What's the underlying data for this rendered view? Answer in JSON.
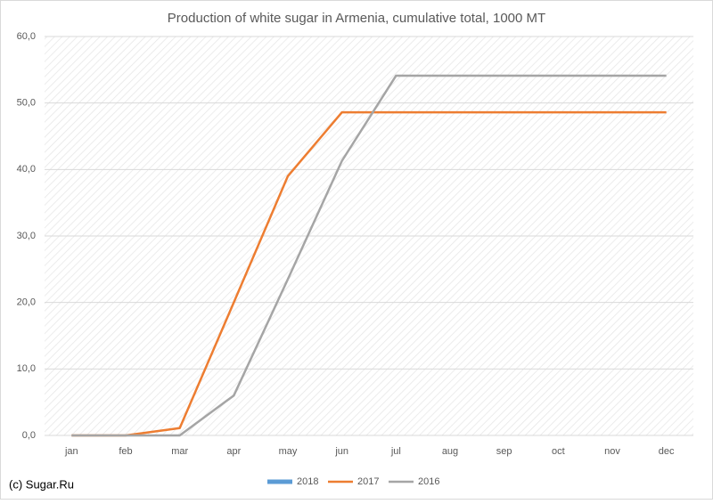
{
  "chart_data": {
    "type": "line",
    "title": "Production of white sugar in Armenia, cumulative total, 1000 MT",
    "categories": [
      "jan",
      "feb",
      "mar",
      "apr",
      "may",
      "jun",
      "jul",
      "aug",
      "sep",
      "oct",
      "nov",
      "dec"
    ],
    "series": [
      {
        "name": "2018",
        "color": "#5b9bd5",
        "values": [
          null,
          null,
          null,
          null,
          null,
          null,
          null,
          null,
          null,
          null,
          null,
          null
        ]
      },
      {
        "name": "2017",
        "color": "#ed7d31",
        "values": [
          0,
          0,
          1.1,
          20,
          39,
          48.6,
          48.6,
          48.6,
          48.6,
          48.6,
          48.6,
          48.6
        ]
      },
      {
        "name": "2016",
        "color": "#a5a5a5",
        "values": [
          0,
          0,
          0,
          6,
          23.5,
          41.3,
          54.1,
          54.1,
          54.1,
          54.1,
          54.1,
          54.1
        ]
      }
    ],
    "ylim": [
      0,
      60
    ],
    "yticks": [
      {
        "value": 0,
        "label": "0,0"
      },
      {
        "value": 10,
        "label": "10,0"
      },
      {
        "value": 20,
        "label": "20,0"
      },
      {
        "value": 30,
        "label": "30,0"
      },
      {
        "value": 40,
        "label": "40,0"
      },
      {
        "value": 50,
        "label": "50,0"
      },
      {
        "value": 60,
        "label": "60,0"
      }
    ],
    "grid": true,
    "legend": "bottom",
    "source": "(c) Sugar.Ru"
  }
}
